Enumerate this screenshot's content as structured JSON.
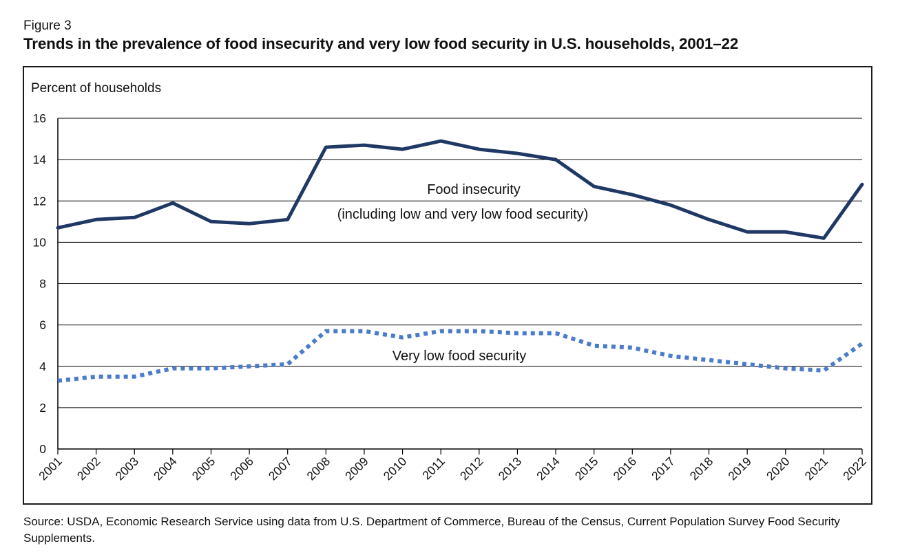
{
  "figure_label": "Figure 3",
  "title": "Trends in the prevalence of food insecurity and very low food security in U.S. households, 2001–22",
  "source": "Source: USDA, Economic Research Service using data from U.S. Department of Commerce, Bureau of the Census, Current Population Survey Food Security Supplements.",
  "chart_data": {
    "type": "line",
    "title": "Trends in the prevalence of food insecurity and very low food security in U.S. households, 2001–22",
    "ylabel": "Percent of households",
    "xlabel": "",
    "ylim": [
      0,
      16
    ],
    "yticks": [
      0,
      2,
      4,
      6,
      8,
      10,
      12,
      14,
      16
    ],
    "grid": true,
    "x": [
      "2001",
      "2002",
      "2003",
      "2004",
      "2005",
      "2006",
      "2007",
      "2008",
      "2009",
      "2010",
      "2011",
      "2012",
      "2013",
      "2014",
      "2015",
      "2016",
      "2017",
      "2018",
      "2019",
      "2020",
      "2021",
      "2022"
    ],
    "series": [
      {
        "name": "Food insecurity (including low and very low food security)",
        "style": "solid",
        "color": "#1f3864",
        "values": [
          10.7,
          11.1,
          11.2,
          11.9,
          11.0,
          10.9,
          11.1,
          14.6,
          14.7,
          14.5,
          14.9,
          14.5,
          14.3,
          14.0,
          12.7,
          12.3,
          11.8,
          11.1,
          10.5,
          10.5,
          10.2,
          12.8
        ]
      },
      {
        "name": "Very low food security",
        "style": "dotted",
        "color": "#4a7cc9",
        "values": [
          3.3,
          3.5,
          3.5,
          3.9,
          3.9,
          4.0,
          4.1,
          5.7,
          5.7,
          5.4,
          5.7,
          5.7,
          5.6,
          5.6,
          5.0,
          4.9,
          4.5,
          4.3,
          4.1,
          3.9,
          3.8,
          5.1
        ]
      }
    ],
    "annotations": [
      {
        "line1": "Food insecurity",
        "line2": "(including low and very low food security)"
      },
      {
        "line1": "Very low food security"
      }
    ]
  }
}
